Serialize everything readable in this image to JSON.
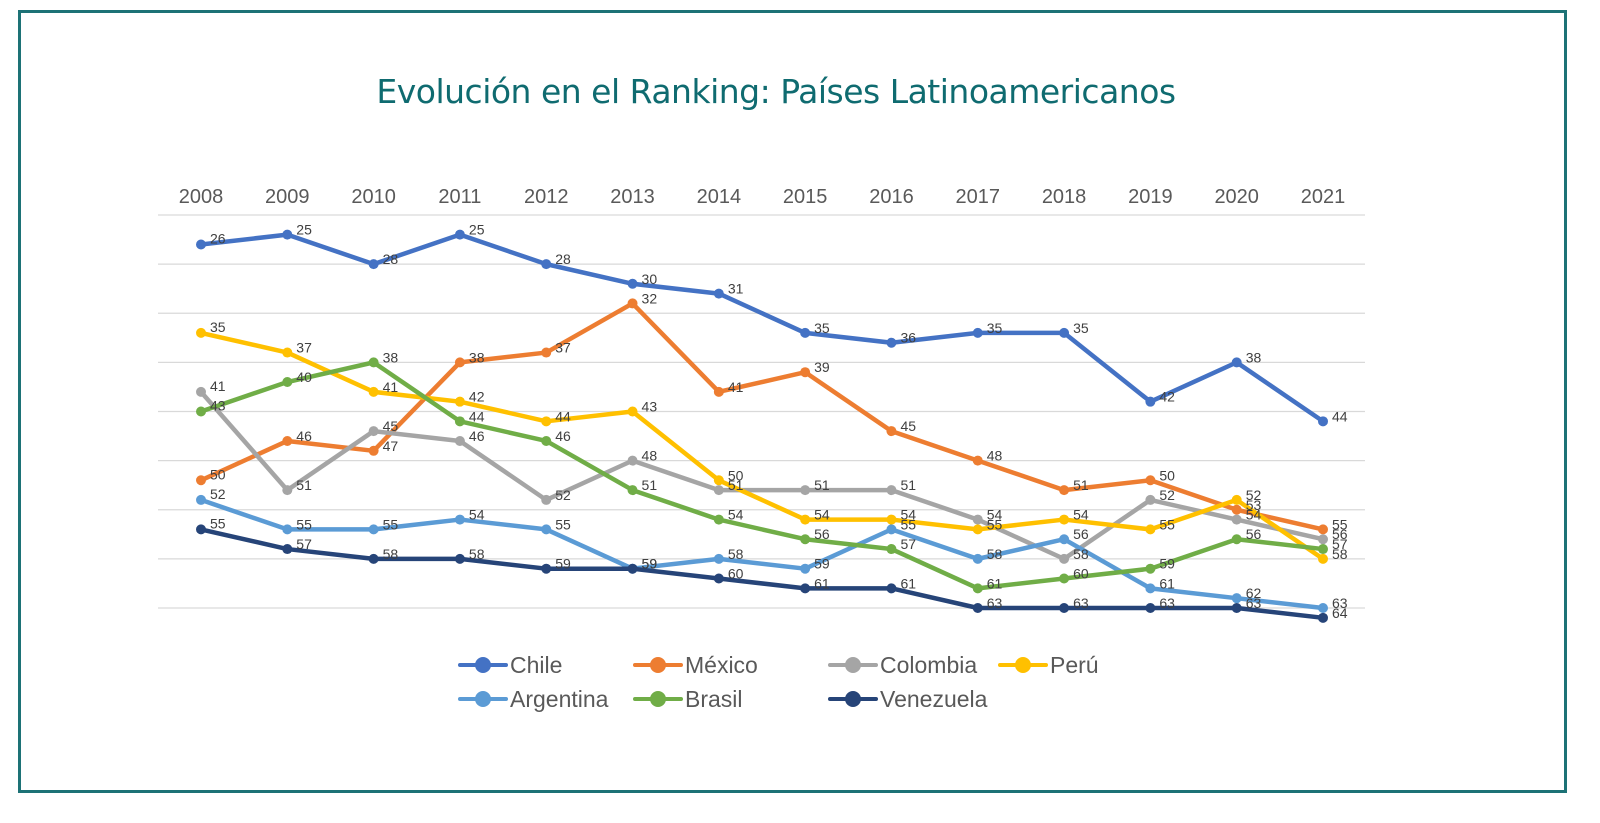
{
  "chart_data": {
    "type": "line",
    "title": "Evolución en el Ranking: Países Latinoamericanos",
    "xlabel": "",
    "ylabel": "",
    "x": [
      "2008",
      "2009",
      "2010",
      "2011",
      "2012",
      "2013",
      "2014",
      "2015",
      "2016",
      "2017",
      "2018",
      "2019",
      "2020",
      "2021"
    ],
    "y_axis": {
      "inverted": true,
      "range": [
        23,
        63
      ],
      "gridlines": [
        23,
        28,
        33,
        38,
        43,
        48,
        53,
        58,
        63
      ],
      "tick_labels_shown": false
    },
    "grid": true,
    "legend_position": "bottom",
    "series": [
      {
        "name": "Chile",
        "color": "#4472c4",
        "values": [
          26,
          25,
          28,
          25,
          28,
          30,
          31,
          35,
          36,
          35,
          35,
          42,
          38,
          44
        ]
      },
      {
        "name": "México",
        "color": "#ed7d31",
        "values": [
          50,
          46,
          47,
          38,
          37,
          32,
          41,
          39,
          45,
          48,
          51,
          50,
          53,
          55
        ]
      },
      {
        "name": "Colombia",
        "color": "#a5a5a5",
        "values": [
          41,
          51,
          45,
          46,
          52,
          48,
          51,
          51,
          51,
          54,
          58,
          52,
          54,
          56
        ]
      },
      {
        "name": "Perú",
        "color": "#ffc000",
        "values": [
          35,
          37,
          41,
          42,
          44,
          43,
          50,
          54,
          54,
          55,
          54,
          55,
          52,
          58
        ]
      },
      {
        "name": "Argentina",
        "color": "#5b9bd5",
        "values": [
          52,
          55,
          55,
          54,
          55,
          59,
          58,
          59,
          55,
          58,
          56,
          61,
          62,
          63
        ]
      },
      {
        "name": "Brasil",
        "color": "#70ad47",
        "values": [
          43,
          40,
          38,
          44,
          46,
          51,
          54,
          56,
          57,
          61,
          60,
          59,
          56,
          57
        ]
      },
      {
        "name": "Venezuela",
        "color": "#264478",
        "values": [
          55,
          57,
          58,
          58,
          59,
          59,
          60,
          61,
          61,
          63,
          63,
          63,
          63,
          64
        ]
      }
    ]
  },
  "legend": {
    "rows": [
      [
        "Chile",
        "México",
        "Colombia",
        "Perú"
      ],
      [
        "Argentina",
        "Brasil",
        "Venezuela"
      ]
    ]
  },
  "colors": {
    "frame": "#1d7276",
    "title": "#0f6b70"
  }
}
